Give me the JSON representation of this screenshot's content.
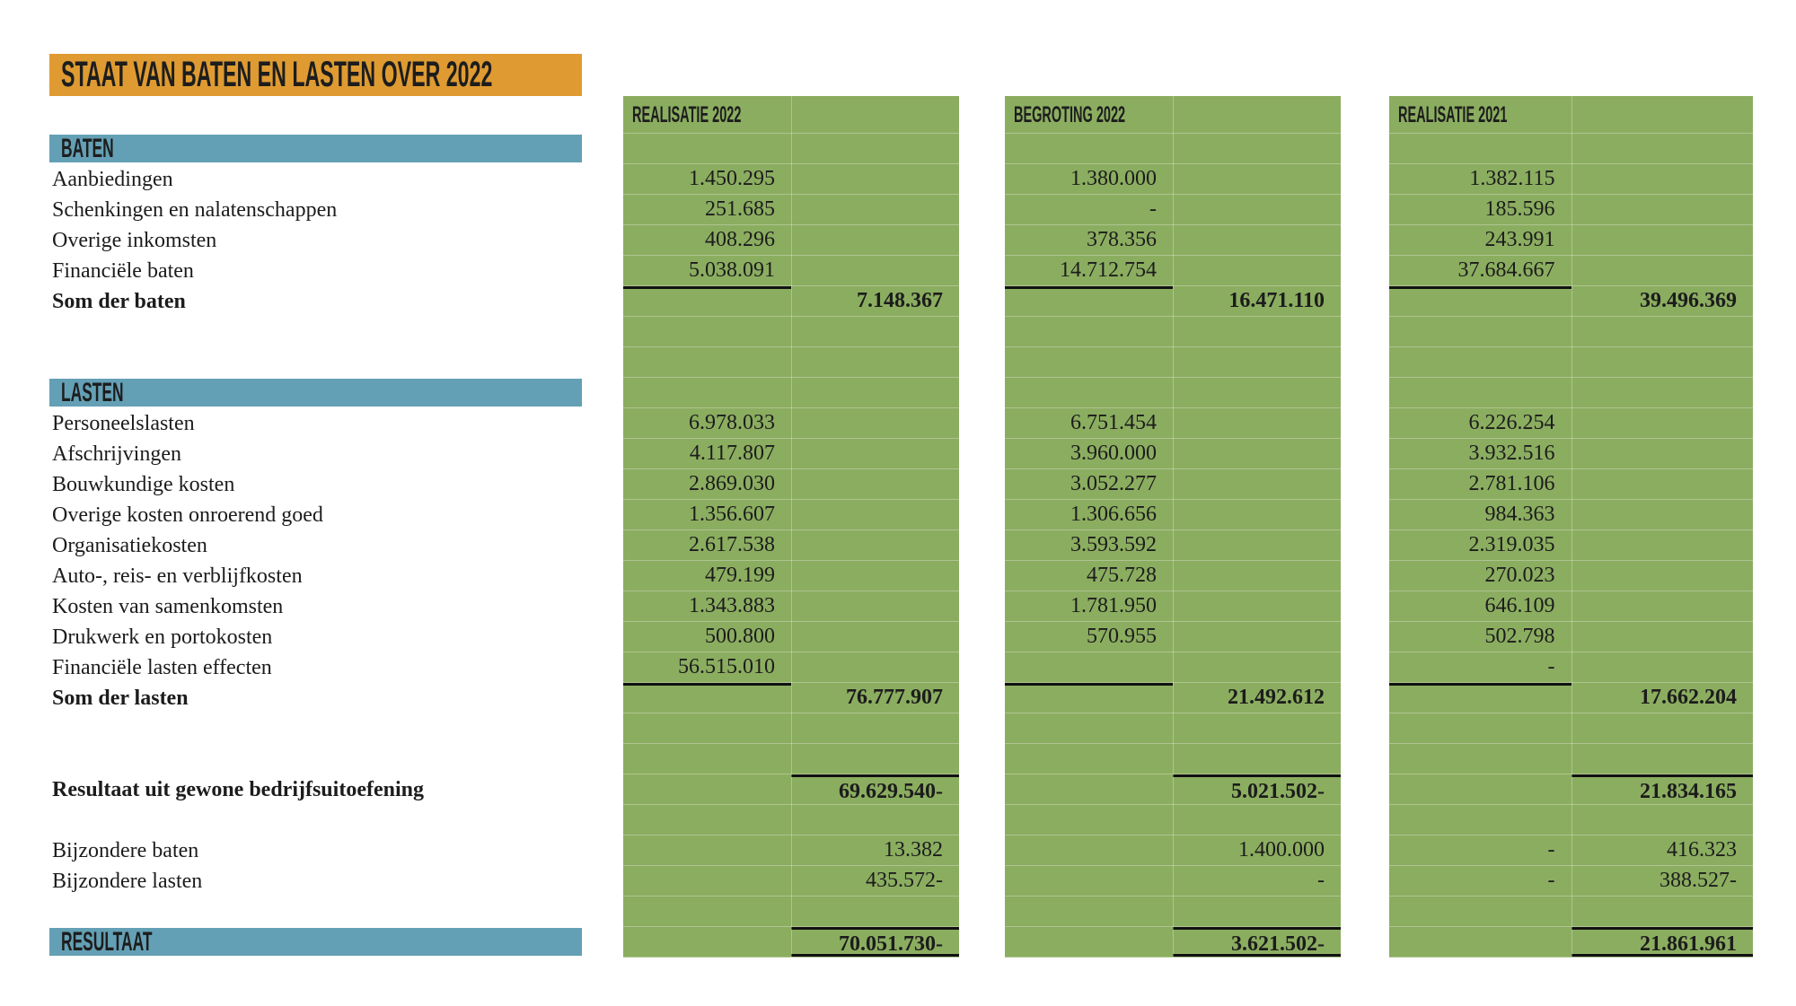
{
  "title": "STAAT VAN BATEN EN LASTEN OVER 2022",
  "colors": {
    "green": "#8bad60",
    "orange": "#df9b31",
    "blue": "#64a0b5",
    "grid": "rgba(255,255,255,0.30)"
  },
  "columns": [
    {
      "header": "REALISATIE 2022"
    },
    {
      "header": "BEGROTING 2022"
    },
    {
      "header": "REALISATIE 2021"
    }
  ],
  "rows": [
    {
      "style": "section",
      "label": "BATEN"
    },
    {
      "style": "item",
      "label": "Aanbiedingen",
      "cols": [
        {
          "d": "1.450.295"
        },
        {
          "d": "1.380.000"
        },
        {
          "d": "1.382.115"
        }
      ]
    },
    {
      "style": "item",
      "label": "Schenkingen en nalatenschappen",
      "cols": [
        {
          "d": "251.685"
        },
        {
          "d": "-"
        },
        {
          "d": "185.596"
        }
      ]
    },
    {
      "style": "item",
      "label": "Overige inkomsten",
      "cols": [
        {
          "d": "408.296"
        },
        {
          "d": "378.356"
        },
        {
          "d": "243.991"
        }
      ]
    },
    {
      "style": "item",
      "label": "Financiële baten",
      "cols": [
        {
          "d": "5.038.091"
        },
        {
          "d": "14.712.754"
        },
        {
          "d": "37.684.667"
        }
      ]
    },
    {
      "style": "total",
      "label": "Som der baten",
      "line_d_top": true,
      "cols": [
        {
          "t": "7.148.367"
        },
        {
          "t": "16.471.110"
        },
        {
          "t": "39.496.369"
        }
      ]
    },
    {
      "style": "blank"
    },
    {
      "style": "blank"
    },
    {
      "style": "section",
      "label": "LASTEN"
    },
    {
      "style": "item",
      "label": "Personeelslasten",
      "cols": [
        {
          "d": "6.978.033"
        },
        {
          "d": "6.751.454"
        },
        {
          "d": "6.226.254"
        }
      ]
    },
    {
      "style": "item",
      "label": "Afschrijvingen",
      "cols": [
        {
          "d": "4.117.807"
        },
        {
          "d": "3.960.000"
        },
        {
          "d": "3.932.516"
        }
      ]
    },
    {
      "style": "item",
      "label": "Bouwkundige kosten",
      "cols": [
        {
          "d": "2.869.030"
        },
        {
          "d": "3.052.277"
        },
        {
          "d": "2.781.106"
        }
      ]
    },
    {
      "style": "item",
      "label": "Overige kosten onroerend goed",
      "cols": [
        {
          "d": "1.356.607"
        },
        {
          "d": "1.306.656"
        },
        {
          "d": "984.363"
        }
      ]
    },
    {
      "style": "item",
      "label": "Organisatiekosten",
      "cols": [
        {
          "d": "2.617.538"
        },
        {
          "d": "3.593.592"
        },
        {
          "d": "2.319.035"
        }
      ]
    },
    {
      "style": "item",
      "label": "Auto-, reis- en verblijfkosten",
      "cols": [
        {
          "d": "479.199"
        },
        {
          "d": "475.728"
        },
        {
          "d": "270.023"
        }
      ]
    },
    {
      "style": "item",
      "label": "Kosten van samenkomsten",
      "cols": [
        {
          "d": "1.343.883"
        },
        {
          "d": "1.781.950"
        },
        {
          "d": "646.109"
        }
      ]
    },
    {
      "style": "item",
      "label": "Drukwerk en portokosten",
      "cols": [
        {
          "d": "500.800"
        },
        {
          "d": "570.955"
        },
        {
          "d": "502.798"
        }
      ]
    },
    {
      "style": "item",
      "label": "Financiële lasten effecten",
      "cols": [
        {
          "d": "56.515.010"
        },
        {
          "d": ""
        },
        {
          "d": "-"
        }
      ]
    },
    {
      "style": "total",
      "label": "Som der lasten",
      "line_d_top": true,
      "cols": [
        {
          "t": "76.777.907"
        },
        {
          "t": "21.492.612"
        },
        {
          "t": "17.662.204"
        }
      ]
    },
    {
      "style": "blank"
    },
    {
      "style": "blank"
    },
    {
      "style": "total",
      "label": "Resultaat uit gewone bedrijfsuitoefening",
      "line_t_top": true,
      "cols": [
        {
          "t": "69.629.540-"
        },
        {
          "t": "5.021.502-"
        },
        {
          "t": "21.834.165"
        }
      ]
    },
    {
      "style": "blank"
    },
    {
      "style": "item",
      "label": "Bijzondere baten",
      "cols": [
        {
          "t": "13.382"
        },
        {
          "t": "1.400.000"
        },
        {
          "d": "-",
          "t": "416.323"
        }
      ]
    },
    {
      "style": "item",
      "label": "Bijzondere lasten",
      "cols": [
        {
          "t": "435.572-"
        },
        {
          "t": "-"
        },
        {
          "d": "-",
          "t": "388.527-"
        }
      ]
    },
    {
      "style": "blank"
    },
    {
      "style": "result",
      "label": "RESULTAAT",
      "line_t_top": true,
      "line_t_bottom": true,
      "cols": [
        {
          "t": "70.051.730-"
        },
        {
          "t": "3.621.502-"
        },
        {
          "t": "21.861.961"
        }
      ]
    }
  ]
}
